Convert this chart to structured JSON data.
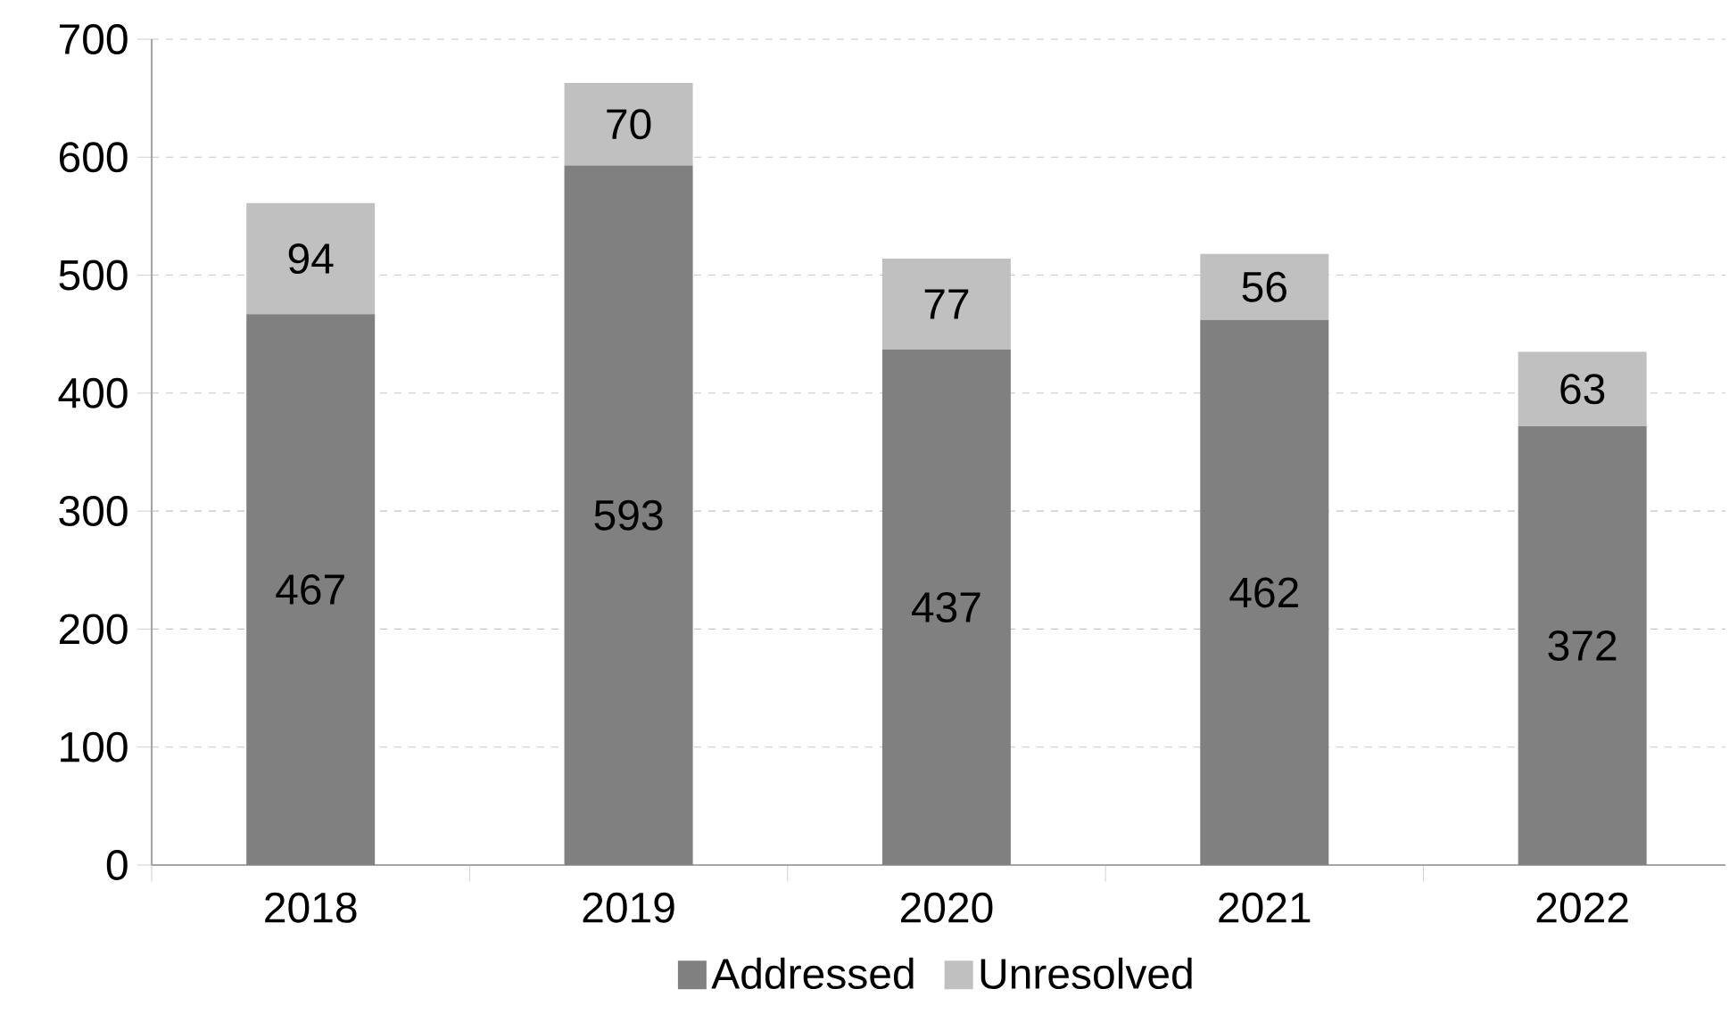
{
  "chart_data": {
    "type": "bar",
    "stacked": true,
    "categories": [
      "2018",
      "2019",
      "2020",
      "2021",
      "2022"
    ],
    "series": [
      {
        "name": "Addressed",
        "color": "#808080",
        "values": [
          467,
          593,
          437,
          462,
          372
        ]
      },
      {
        "name": "Unresolved",
        "color": "#c0c0c0",
        "values": [
          94,
          70,
          77,
          56,
          63
        ]
      }
    ],
    "ylim": [
      0,
      700
    ],
    "yticks": [
      0,
      100,
      200,
      300,
      400,
      500,
      600,
      700
    ],
    "grid": "y",
    "legend": "bottom",
    "data_labels": true
  }
}
